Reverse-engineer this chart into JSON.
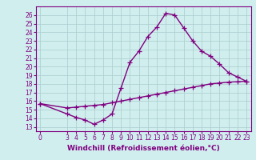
{
  "line1_x": [
    0,
    3,
    4,
    5,
    6,
    7,
    8,
    9,
    10,
    11,
    12,
    13,
    14,
    15,
    16,
    17,
    18,
    19,
    20,
    21,
    22,
    23
  ],
  "line1_y": [
    15.7,
    14.5,
    14.1,
    13.8,
    13.3,
    13.8,
    14.5,
    17.5,
    20.5,
    21.8,
    23.5,
    24.6,
    26.2,
    26.0,
    24.5,
    23.0,
    21.8,
    21.2,
    20.3,
    19.3,
    18.8,
    18.3
  ],
  "line2_x": [
    0,
    3,
    4,
    5,
    6,
    7,
    8,
    9,
    10,
    11,
    12,
    13,
    14,
    15,
    16,
    17,
    18,
    19,
    20,
    21,
    22,
    23
  ],
  "line2_y": [
    15.7,
    15.2,
    15.3,
    15.4,
    15.5,
    15.6,
    15.8,
    16.0,
    16.2,
    16.4,
    16.6,
    16.8,
    17.0,
    17.2,
    17.4,
    17.6,
    17.8,
    18.0,
    18.1,
    18.2,
    18.25,
    18.3
  ],
  "line_color": "#800080",
  "bg_color": "#d0eeee",
  "grid_color": "#aacccc",
  "xlabel": "Windchill (Refroidissement éolien,°C)",
  "xticks": [
    0,
    3,
    4,
    5,
    6,
    7,
    8,
    9,
    10,
    11,
    12,
    13,
    14,
    15,
    16,
    17,
    18,
    19,
    20,
    21,
    22,
    23
  ],
  "yticks": [
    13,
    14,
    15,
    16,
    17,
    18,
    19,
    20,
    21,
    22,
    23,
    24,
    25,
    26
  ],
  "ylim": [
    12.5,
    27.0
  ],
  "xlim": [
    -0.5,
    23.5
  ],
  "marker": "+",
  "markersize": 4,
  "linewidth": 1.0,
  "xlabel_fontsize": 6.5,
  "tick_fontsize": 5.5
}
